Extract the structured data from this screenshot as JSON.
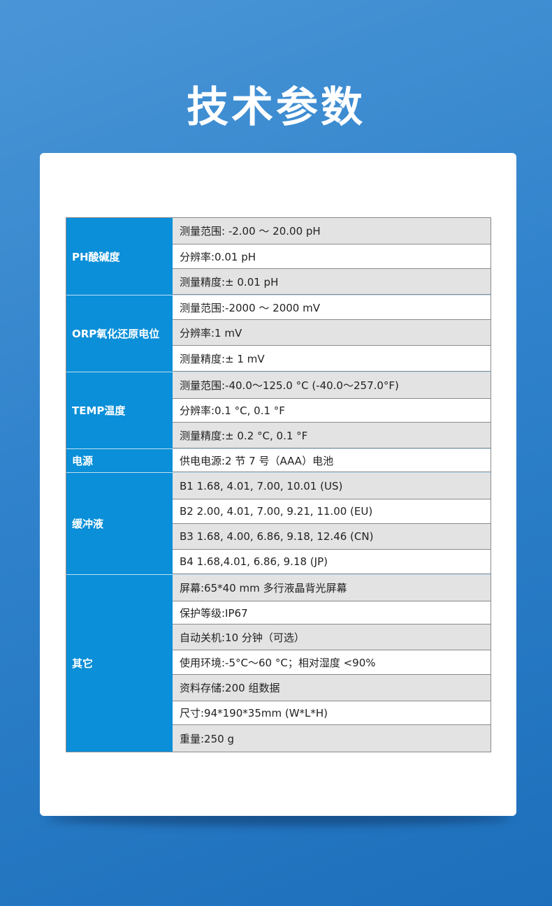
{
  "title": "技术参数",
  "colors": {
    "category_bg": "#0a8fd8",
    "row_gray": "#e3e3e3",
    "row_white": "#ffffff"
  },
  "groups": [
    {
      "label": "PH酸碱度",
      "rows": [
        "测量范围: -2.00 ～ 20.00 pH",
        "分辨率:0.01 pH",
        "测量精度:± 0.01 pH"
      ]
    },
    {
      "label": "ORP氧化还原电位",
      "rows": [
        "测量范围:-2000 ～ 2000 mV",
        "分辨率:1 mV",
        "测量精度:± 1 mV"
      ]
    },
    {
      "label": "TEMP温度",
      "rows": [
        "测量范围:-40.0～125.0 °C (-40.0～257.0°F)",
        "分辨率:0.1 °C, 0.1 °F",
        "测量精度:± 0.2 °C, 0.1 °F"
      ]
    },
    {
      "label": "电源",
      "rows": [
        "供电电源:2 节 7 号（AAA）电池"
      ]
    },
    {
      "label": "缓冲液",
      "rows": [
        "B1 1.68, 4.01, 7.00, 10.01 (US)",
        "B2 2.00, 4.01, 7.00, 9.21, 11.00 (EU)",
        "B3 1.68, 4.00, 6.86, 9.18, 12.46 (CN)",
        "B4 1.68,4.01, 6.86, 9.18 (JP)"
      ]
    },
    {
      "label": "其它",
      "rows": [
        "屏幕:65*40 mm 多行液晶背光屏幕",
        "保护等级:IP67",
        "自动关机:10 分钟（可选）",
        "使用环境:-5°C～60 °C；相对湿度 <90%",
        "资料存储:200 组数据",
        "尺寸:94*190*35mm (W*L*H)",
        "重量:250 g"
      ]
    }
  ]
}
